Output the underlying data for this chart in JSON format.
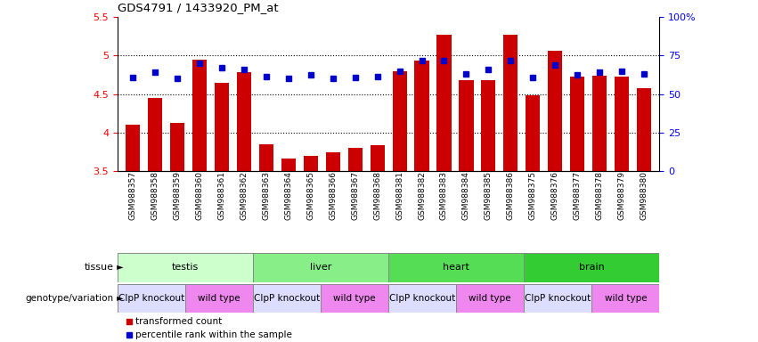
{
  "title": "GDS4791 / 1433920_PM_at",
  "samples": [
    "GSM988357",
    "GSM988358",
    "GSM988359",
    "GSM988360",
    "GSM988361",
    "GSM988362",
    "GSM988363",
    "GSM988364",
    "GSM988365",
    "GSM988366",
    "GSM988367",
    "GSM988368",
    "GSM988381",
    "GSM988382",
    "GSM988383",
    "GSM988384",
    "GSM988385",
    "GSM988386",
    "GSM988375",
    "GSM988376",
    "GSM988377",
    "GSM988378",
    "GSM988379",
    "GSM988380"
  ],
  "bar_values": [
    4.1,
    4.45,
    4.12,
    4.95,
    4.65,
    4.78,
    3.85,
    3.66,
    3.7,
    3.74,
    3.8,
    3.84,
    4.8,
    4.93,
    5.27,
    4.68,
    4.68,
    5.27,
    4.48,
    5.06,
    4.73,
    4.74,
    4.73,
    4.58
  ],
  "percentile_values": [
    4.72,
    4.78,
    4.7,
    4.9,
    4.84,
    4.82,
    4.73,
    4.7,
    4.75,
    4.7,
    4.72,
    4.73,
    4.8,
    4.94,
    4.94,
    4.76,
    4.82,
    4.94,
    4.72,
    4.88,
    4.75,
    4.78,
    4.8,
    4.76
  ],
  "ymin": 3.5,
  "ymax": 5.5,
  "yticks": [
    3.5,
    4.0,
    4.5,
    5.0,
    5.5
  ],
  "ytick_labels": [
    "3.5",
    "4",
    "4.5",
    "5",
    "5.5"
  ],
  "right_yticks": [
    0,
    25,
    50,
    75,
    100
  ],
  "right_ytick_labels": [
    "0",
    "25",
    "50",
    "75",
    "100%"
  ],
  "bar_color": "#CC0000",
  "percentile_color": "#0000CC",
  "dotted_line_values": [
    4.0,
    4.5,
    5.0
  ],
  "tissue_groups": [
    {
      "label": "testis",
      "start": 0,
      "end": 6,
      "color": "#ccffcc"
    },
    {
      "label": "liver",
      "start": 6,
      "end": 12,
      "color": "#88ee88"
    },
    {
      "label": "heart",
      "start": 12,
      "end": 18,
      "color": "#55dd55"
    },
    {
      "label": "brain",
      "start": 18,
      "end": 24,
      "color": "#33cc33"
    }
  ],
  "genotype_groups": [
    {
      "label": "ClpP knockout",
      "start": 0,
      "end": 3,
      "color": "#ddddff"
    },
    {
      "label": "wild type",
      "start": 3,
      "end": 6,
      "color": "#ee88ee"
    },
    {
      "label": "ClpP knockout",
      "start": 6,
      "end": 9,
      "color": "#ddddff"
    },
    {
      "label": "wild type",
      "start": 9,
      "end": 12,
      "color": "#ee88ee"
    },
    {
      "label": "ClpP knockout",
      "start": 12,
      "end": 15,
      "color": "#ddddff"
    },
    {
      "label": "wild type",
      "start": 15,
      "end": 18,
      "color": "#ee88ee"
    },
    {
      "label": "ClpP knockout",
      "start": 18,
      "end": 21,
      "color": "#ddddff"
    },
    {
      "label": "wild type",
      "start": 21,
      "end": 24,
      "color": "#ee88ee"
    }
  ],
  "tissue_label": "tissue",
  "genotype_label": "genotype/variation",
  "legend_items": [
    {
      "color": "#CC0000",
      "label": "transformed count"
    },
    {
      "color": "#0000CC",
      "label": "percentile rank within the sample"
    }
  ]
}
